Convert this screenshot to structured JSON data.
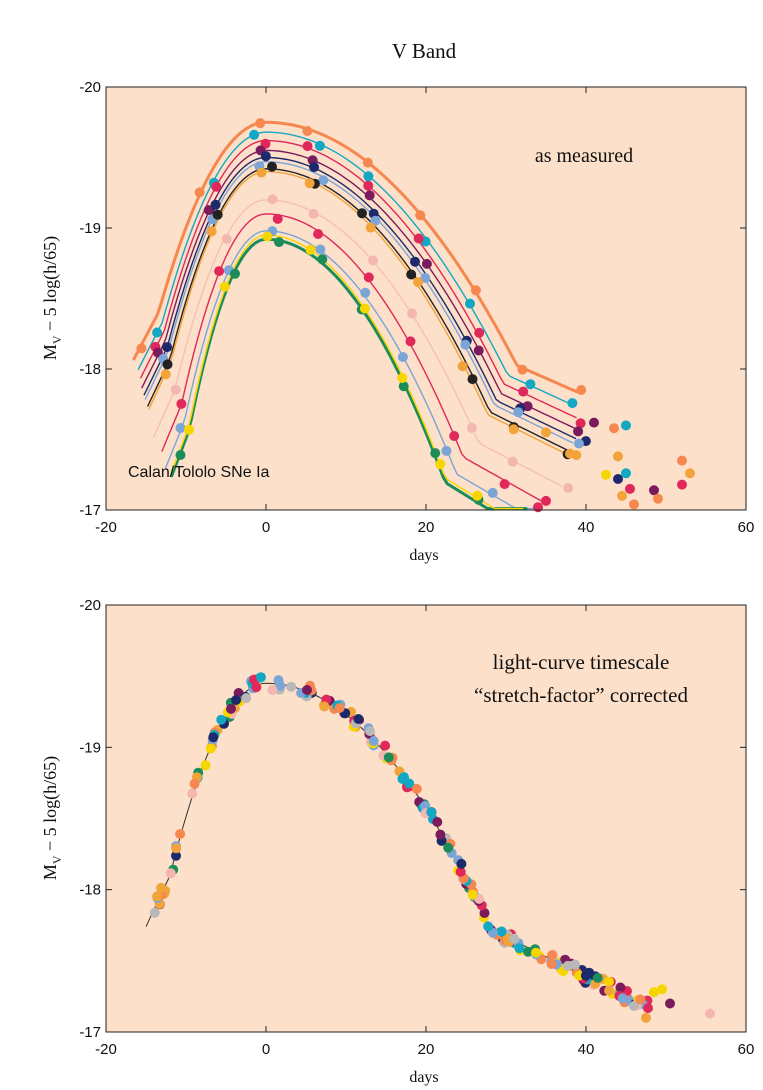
{
  "figure_title": "V Band",
  "colors": {
    "background": "#fde0c9",
    "frame": "#222222",
    "palette": [
      "#f5874f",
      "#e0285a",
      "#7a1b5e",
      "#1c2a6b",
      "#12a8c4",
      "#1b8c5a",
      "#7aa5d6",
      "#f2a33a",
      "#f7d600",
      "#b8b8b8",
      "#f4b6b0"
    ]
  },
  "chart_data": [
    {
      "type": "scatter",
      "panel": "top",
      "title": "",
      "annotation": "as measured",
      "label": "Calan/Tololo SNe Ia",
      "xlabel": "days",
      "ylabel_main": "M",
      "ylabel_sub": "V",
      "ylabel_rest": " − 5 log(h/65)",
      "xlim": [
        -20,
        60
      ],
      "ylim": [
        -17,
        -20
      ],
      "y_inverted": true,
      "x_ticks": [
        "-20",
        "0",
        "20",
        "40",
        "60"
      ],
      "y_ticks": [
        "-20",
        "-19",
        "-18",
        "-17"
      ],
      "grid": false,
      "series": [
        {
          "color": "#f5874f",
          "stretch": 1.12,
          "peak": -19.75
        },
        {
          "color": "#12a8c4",
          "stretch": 1.08,
          "peak": -19.68
        },
        {
          "color": "#e0285a",
          "stretch": 1.06,
          "peak": -19.62
        },
        {
          "color": "#7a1b5e",
          "stretch": 1.05,
          "peak": -19.55
        },
        {
          "color": "#1c2a6b",
          "stretch": 1.03,
          "peak": -19.5
        },
        {
          "color": "#7aa5d6",
          "stretch": 1.02,
          "peak": -19.47
        },
        {
          "color": "#222222",
          "stretch": 1.0,
          "peak": -19.42
        },
        {
          "color": "#f2a33a",
          "stretch": 0.99,
          "peak": -19.4
        },
        {
          "color": "#f4b6b0",
          "stretch": 0.95,
          "peak": -19.2
        },
        {
          "color": "#e0285a",
          "stretch": 0.88,
          "peak": -19.1
        },
        {
          "color": "#7aa5d6",
          "stretch": 0.85,
          "peak": -18.98
        },
        {
          "color": "#1b8c5a",
          "stretch": 0.8,
          "peak": -18.92
        },
        {
          "color": "#f7d600",
          "stretch": 0.8,
          "peak": -18.95
        }
      ],
      "extra_points": [
        {
          "x": 41,
          "y": -17.62,
          "color": "#7a1b5e"
        },
        {
          "x": 43.5,
          "y": -17.58,
          "color": "#f5874f"
        },
        {
          "x": 45,
          "y": -17.6,
          "color": "#12a8c4"
        },
        {
          "x": 44,
          "y": -17.38,
          "color": "#f2a33a"
        },
        {
          "x": 45,
          "y": -17.26,
          "color": "#12a8c4"
        },
        {
          "x": 42.5,
          "y": -17.25,
          "color": "#f7d600"
        },
        {
          "x": 45.5,
          "y": -17.15,
          "color": "#e0285a"
        },
        {
          "x": 44,
          "y": -17.22,
          "color": "#1c2a6b"
        },
        {
          "x": 44.5,
          "y": -17.1,
          "color": "#f2a33a"
        },
        {
          "x": 46,
          "y": -17.04,
          "color": "#f5874f"
        },
        {
          "x": 48.5,
          "y": -17.14,
          "color": "#7a1b5e"
        },
        {
          "x": 49,
          "y": -17.08,
          "color": "#f5874f"
        },
        {
          "x": 52,
          "y": -17.35,
          "color": "#f5874f"
        },
        {
          "x": 53,
          "y": -17.26,
          "color": "#f2a33a"
        },
        {
          "x": 52,
          "y": -17.18,
          "color": "#e0285a"
        },
        {
          "x": 35,
          "y": -17.55,
          "color": "#f2a33a"
        },
        {
          "x": 38,
          "y": -17.4,
          "color": "#f2a33a"
        },
        {
          "x": 34,
          "y": -17.02,
          "color": "#e0285a"
        }
      ]
    },
    {
      "type": "scatter",
      "panel": "bottom",
      "title": "",
      "annotation_line1": "light-curve timescale",
      "annotation_line2": "“stretch-factor” corrected",
      "xlabel": "days",
      "ylabel_main": "M",
      "ylabel_sub": "V",
      "ylabel_rest": " − 5 log(h/65)",
      "xlim": [
        -20,
        60
      ],
      "ylim": [
        -17,
        -20
      ],
      "y_inverted": true,
      "x_ticks": [
        "-20",
        "0",
        "20",
        "40",
        "60"
      ],
      "y_ticks": [
        "-20",
        "-19",
        "-18",
        "-17"
      ],
      "grid": false,
      "template_curve": {
        "color": "#333333",
        "peak": -19.45,
        "x_start": -15,
        "x_end": 41
      },
      "extra_points": [
        {
          "x": 55.5,
          "y": -17.13,
          "color": "#f4b6b0"
        },
        {
          "x": 50.5,
          "y": -17.2,
          "color": "#7a1b5e"
        },
        {
          "x": 49.5,
          "y": -17.3,
          "color": "#f7d600"
        },
        {
          "x": 48.5,
          "y": -17.28,
          "color": "#f7d600"
        },
        {
          "x": 47.5,
          "y": -17.1,
          "color": "#f2a33a"
        }
      ]
    }
  ]
}
